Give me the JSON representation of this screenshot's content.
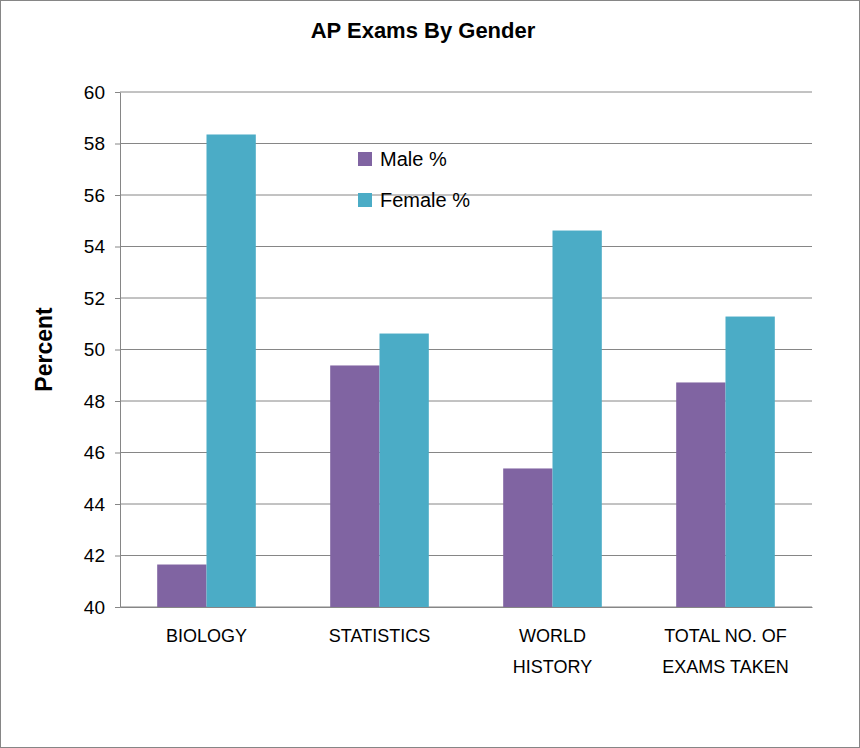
{
  "chart_data": {
    "type": "bar",
    "title": "AP Exams By Gender",
    "y_label": "Percent",
    "categories": [
      "BIOLOGY",
      "STATISTICS",
      "WORLD HISTORY",
      "TOTAL NO. OF EXAMS TAKEN"
    ],
    "series": [
      {
        "name": "Male %",
        "color": "#8064a2",
        "values": [
          41.65,
          49.38,
          45.38,
          48.72
        ]
      },
      {
        "name": "Female %",
        "color": "#4bacc6",
        "values": [
          58.35,
          50.62,
          54.62,
          51.28
        ]
      }
    ],
    "ylim": [
      40,
      60
    ],
    "yticks": [
      40,
      42,
      44,
      46,
      48,
      50,
      52,
      54,
      56,
      58,
      60
    ],
    "grid": true,
    "legend": "top"
  }
}
